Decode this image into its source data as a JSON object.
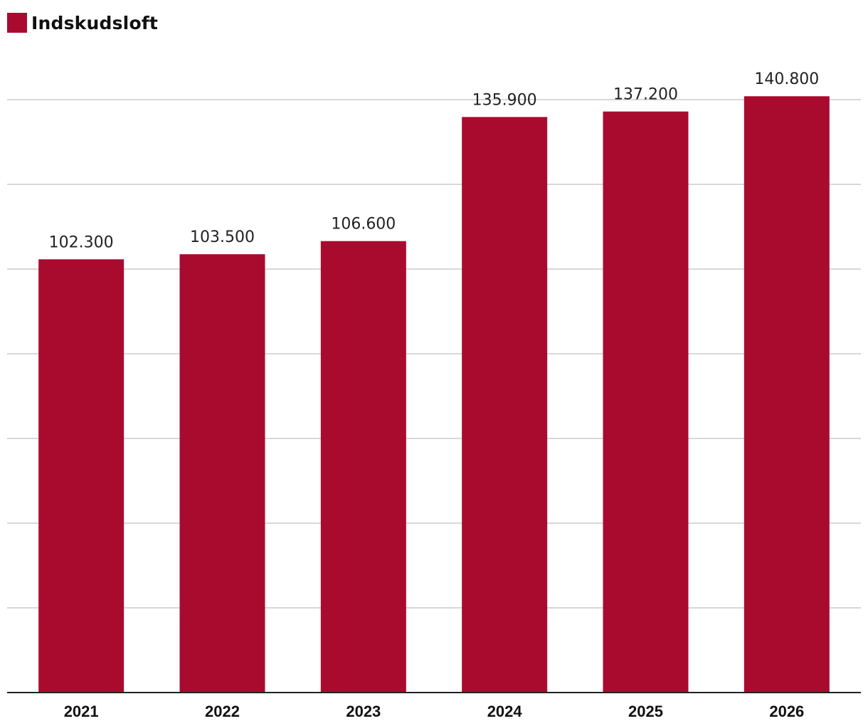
{
  "colors": {
    "bar": "#a90b2e",
    "grid": "#cccccc",
    "axis": "#222222"
  },
  "chart_data": {
    "type": "bar",
    "title": "",
    "xlabel": "",
    "ylabel": "",
    "legend": [
      "Indskudsloft"
    ],
    "legend_position": "top-left",
    "categories": [
      "2021",
      "2022",
      "2023",
      "2024",
      "2025",
      "2026"
    ],
    "values": [
      102300,
      103500,
      106600,
      135900,
      137200,
      140800
    ],
    "value_labels": [
      "102.300",
      "103.500",
      "106.600",
      "135.900",
      "137.200",
      "140.800"
    ],
    "ylim": [
      0,
      140000
    ],
    "yticks": [
      0,
      20000,
      40000,
      60000,
      80000,
      100000,
      120000,
      140000
    ],
    "ytick_labels_visible": false,
    "grid": true
  }
}
